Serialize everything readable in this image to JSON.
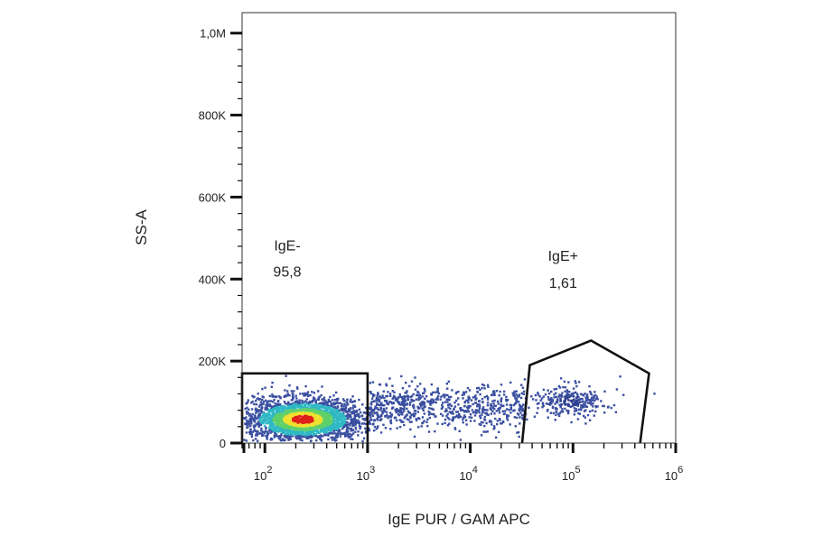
{
  "chart_data": {
    "type": "scatter",
    "title": "",
    "xlabel": "IgE PUR / GAM APC",
    "ylabel": "SS-A",
    "x_scale": "log",
    "xlim": [
      60,
      1000000
    ],
    "ylim": [
      0,
      1050000
    ],
    "grid": false,
    "legend": "none",
    "y_ticks": [
      {
        "value": 0,
        "label": "0"
      },
      {
        "value": 200000,
        "label": "200K"
      },
      {
        "value": 400000,
        "label": "400K"
      },
      {
        "value": 600000,
        "label": "600K"
      },
      {
        "value": 800000,
        "label": "800K"
      },
      {
        "value": 1000000,
        "label": "1,0M"
      }
    ],
    "x_ticks": [
      {
        "value": 100,
        "base": "10",
        "exp": "2"
      },
      {
        "value": 1000,
        "base": "10",
        "exp": "3"
      },
      {
        "value": 10000,
        "base": "10",
        "exp": "4"
      },
      {
        "value": 100000,
        "base": "10",
        "exp": "5"
      },
      {
        "value": 1000000,
        "base": "10",
        "exp": "6"
      }
    ],
    "gates": [
      {
        "name": "IgE-",
        "value": "95,8",
        "shape": "rectangle",
        "x_range": [
          60,
          1000
        ],
        "y_range": [
          0,
          170000
        ]
      },
      {
        "name": "IgE+",
        "value": "1,61",
        "shape": "polygon",
        "vertices": [
          [
            32000,
            0
          ],
          [
            38000,
            190000
          ],
          [
            150000,
            250000
          ],
          [
            550000,
            170000
          ],
          [
            450000,
            0
          ]
        ]
      }
    ],
    "populations": [
      {
        "name": "",
        "center_x": 230,
        "center_y": 60000,
        "count": 2600,
        "density": "high"
      },
      {
        "name": "",
        "center_x": 6000,
        "center_y": 90000,
        "count": 700,
        "density": "sparse"
      },
      {
        "name": "",
        "center_x": 90000,
        "center_y": 105000,
        "count": 280,
        "density": "medium"
      }
    ],
    "colors": {
      "low": "#3a4fa0",
      "mid": "#2fb8c4",
      "mid_high": "#5fd06a",
      "high": "#f0e030",
      "peak": "#e0201a"
    }
  }
}
